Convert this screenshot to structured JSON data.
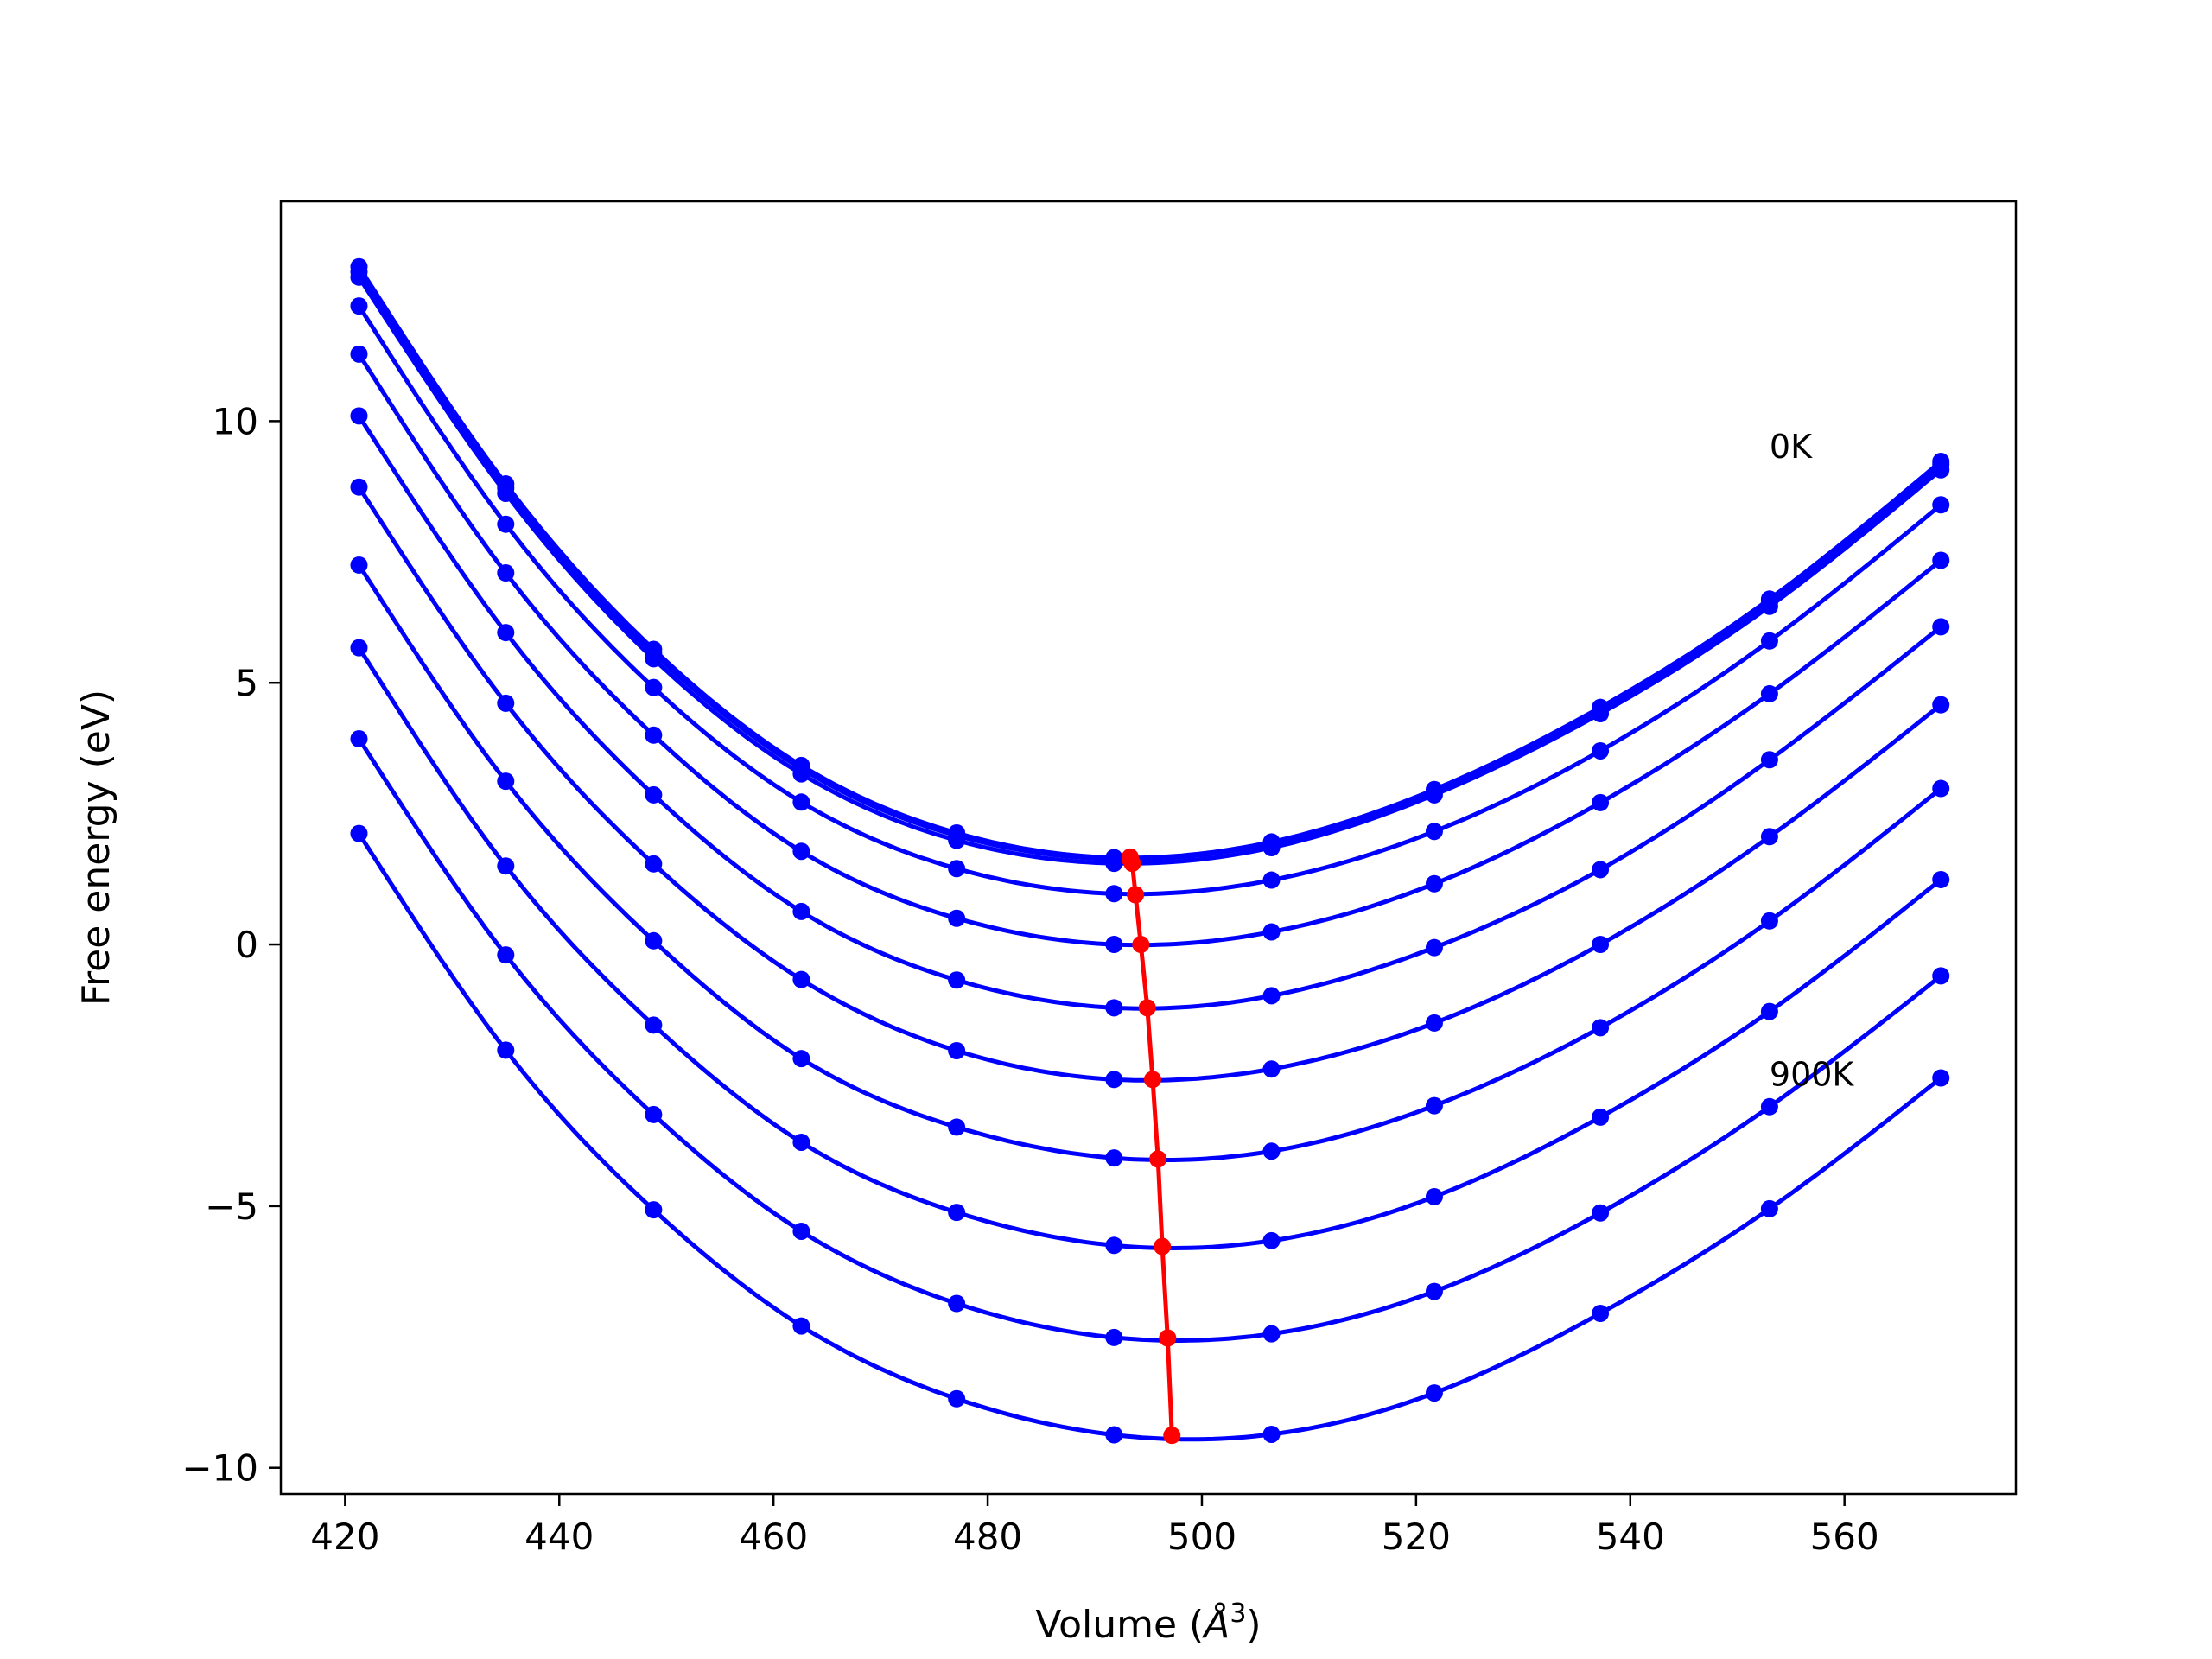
{
  "chart_data": {
    "type": "line",
    "title": "",
    "xlabel": "Volume (",
    "xlabel_symbol": "Å",
    "xlabel_sup": "3",
    "xlabel_close": ")",
    "ylabel": "Free energy (eV)",
    "xlim": [
      414,
      576
    ],
    "ylim": [
      -10.5,
      14.2
    ],
    "xticks": [
      420,
      440,
      460,
      480,
      500,
      520,
      540,
      560
    ],
    "xtick_labels": [
      "420",
      "440",
      "460",
      "480",
      "500",
      "520",
      "540",
      "560"
    ],
    "yticks": [
      -10,
      -5,
      0,
      5,
      10
    ],
    "ytick_labels": [
      "−10",
      "−5",
      "0",
      "5",
      "10"
    ],
    "grid": false,
    "annotations": [
      {
        "text": "0K",
        "x": 553,
        "y": 9.3
      },
      {
        "text": "900K",
        "x": 553,
        "y": -2.7
      }
    ],
    "x": [
      421.3,
      435.0,
      448.8,
      462.6,
      477.1,
      491.8,
      506.5,
      521.7,
      537.2,
      553.0,
      569.0
    ],
    "series": [
      {
        "color": "#0000ff",
        "values": [
          12.95,
          8.8,
          5.64,
          3.42,
          2.13,
          1.66,
          1.96,
          2.96,
          4.53,
          6.6,
          9.23
        ]
      },
      {
        "color": "#0000ff",
        "values": [
          12.85,
          8.72,
          5.57,
          3.36,
          2.08,
          1.63,
          1.93,
          2.93,
          4.48,
          6.54,
          9.17
        ]
      },
      {
        "color": "#0000ff",
        "values": [
          12.75,
          8.62,
          5.46,
          3.26,
          1.99,
          1.55,
          1.85,
          2.86,
          4.41,
          6.46,
          9.07
        ]
      },
      {
        "color": "#0000ff",
        "values": [
          12.2,
          8.03,
          4.91,
          2.72,
          1.45,
          0.97,
          1.23,
          2.16,
          3.7,
          5.8,
          8.4
        ]
      },
      {
        "color": "#0000ff",
        "values": [
          11.28,
          7.1,
          4.0,
          1.78,
          0.5,
          0.0,
          0.24,
          1.16,
          2.71,
          4.79,
          7.34
        ]
      },
      {
        "color": "#0000ff",
        "values": [
          10.1,
          5.96,
          2.86,
          0.63,
          -0.68,
          -1.21,
          -0.98,
          -0.06,
          1.43,
          3.53,
          6.07
        ]
      },
      {
        "color": "#0000ff",
        "values": [
          8.74,
          4.61,
          1.54,
          -0.67,
          -2.03,
          -2.58,
          -2.38,
          -1.5,
          0.0,
          2.06,
          4.58
        ]
      },
      {
        "color": "#0000ff",
        "values": [
          7.25,
          3.12,
          0.07,
          -2.18,
          -3.49,
          -4.08,
          -3.95,
          -3.08,
          -1.59,
          0.45,
          2.98
        ]
      },
      {
        "color": "#0000ff",
        "values": [
          5.67,
          1.5,
          -1.54,
          -3.78,
          -5.12,
          -5.75,
          -5.66,
          -4.82,
          -3.3,
          -1.28,
          1.24
        ]
      },
      {
        "color": "#0000ff",
        "values": [
          3.93,
          -0.2,
          -3.25,
          -5.48,
          -6.86,
          -7.51,
          -7.44,
          -6.63,
          -5.13,
          -3.1,
          -0.6
        ]
      },
      {
        "color": "#0000ff",
        "values": [
          2.12,
          -2.02,
          -5.07,
          -7.29,
          -8.68,
          -9.37,
          -9.36,
          -8.57,
          -7.05,
          -5.05,
          -2.55
        ]
      }
    ],
    "minima_series": {
      "color": "#ff0000",
      "x": [
        493.3,
        493.3,
        493.5,
        493.8,
        494.3,
        494.9,
        495.4,
        495.9,
        496.3,
        496.8,
        497.2
      ],
      "y": [
        1.67,
        1.63,
        1.55,
        0.95,
        0.0,
        -1.21,
        -2.58,
        -4.1,
        -5.77,
        -7.52,
        -9.38
      ]
    }
  }
}
